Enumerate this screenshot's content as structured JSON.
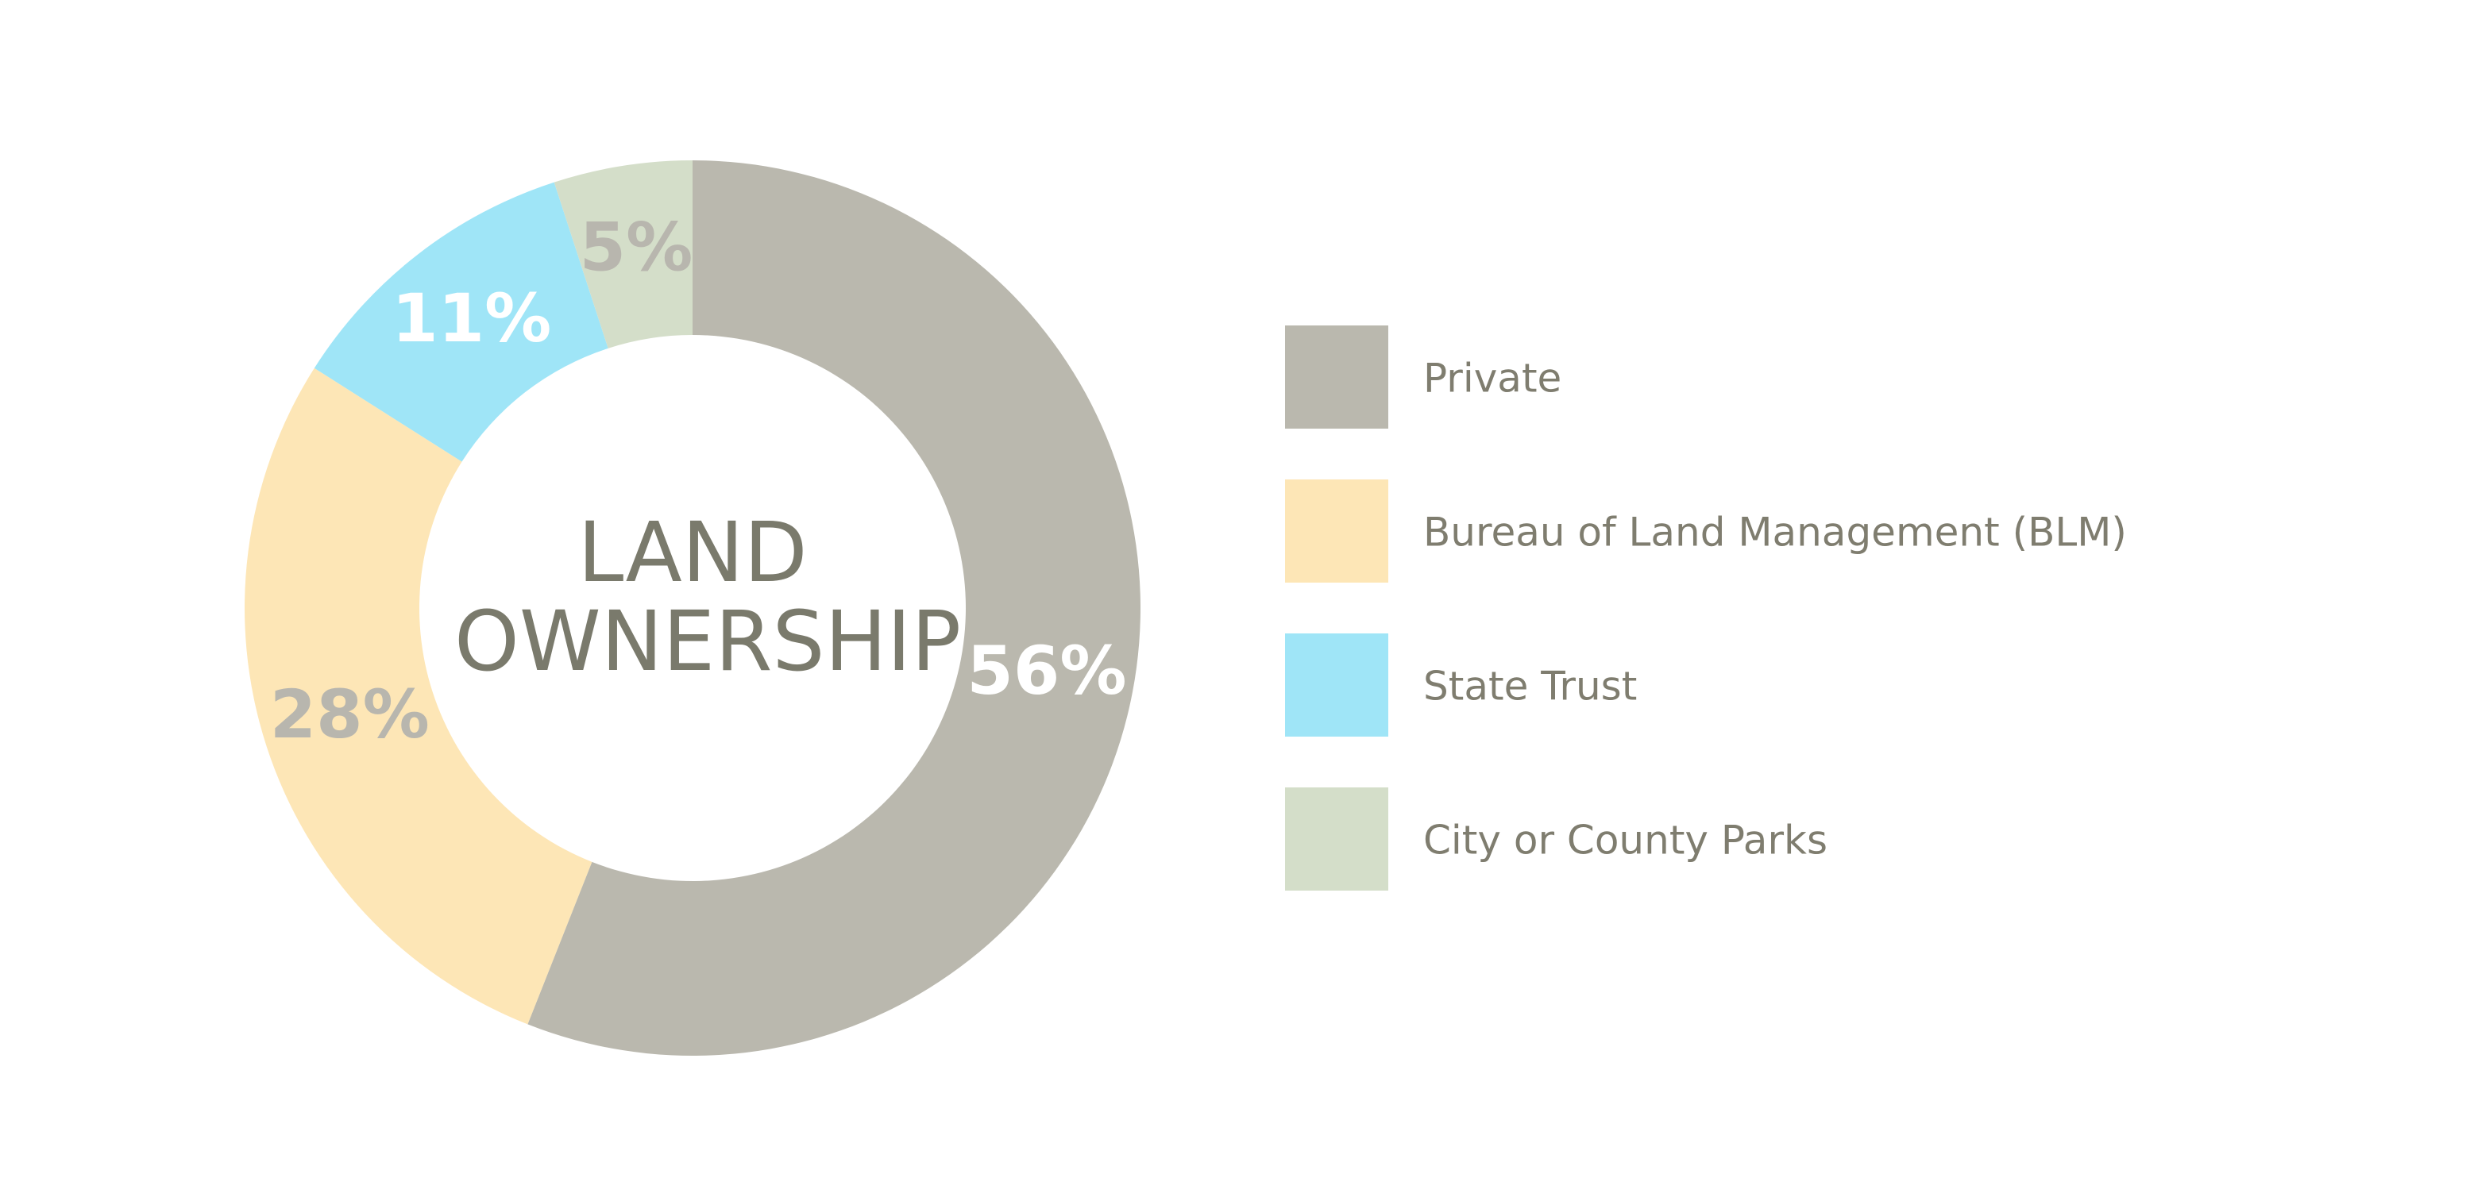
{
  "chart_data": {
    "type": "donut",
    "title": "LAND OWNERSHIP",
    "categories": [
      "Private",
      "Bureau of Land Management (BLM)",
      "State Trust",
      "City or County Parks"
    ],
    "values": [
      56,
      28,
      11,
      5
    ],
    "value_labels": [
      "56%",
      "28%",
      "11%",
      "5%"
    ],
    "colors": [
      "#bab8ae",
      "#fde6b6",
      "#9fe5f7",
      "#d4dec9"
    ],
    "label_colors": [
      "#ffffff",
      "#b8b6ae",
      "#ffffff",
      "#b8b6ae"
    ],
    "legend": "right"
  }
}
